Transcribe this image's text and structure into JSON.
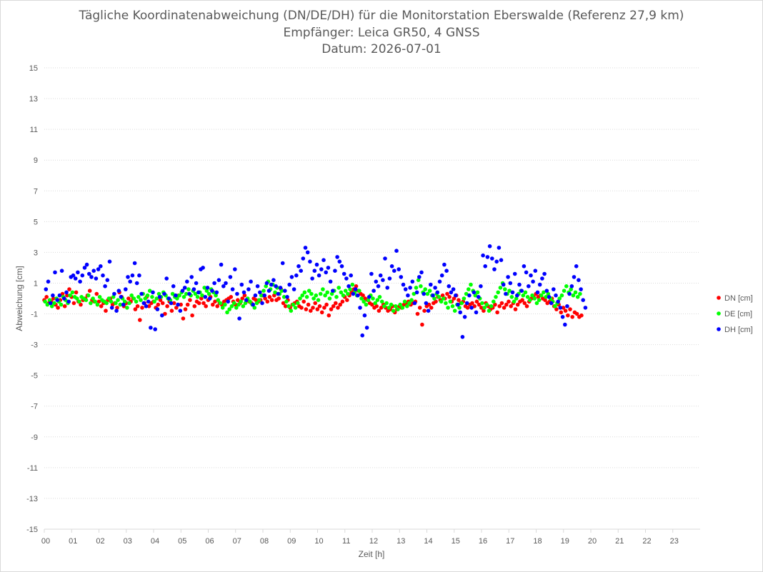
{
  "chart_data": {
    "type": "scatter",
    "title": [
      "Tägliche Koordinatenabweichung (DN/DE/DH) für die Monitorstation Eberswalde (Referenz 27,9 km)",
      "Empfänger: Leica GR50, 4 GNSS",
      "Datum: 2026-07-01"
    ],
    "xlabel": "Zeit [h]",
    "ylabel": "Abweichung [cm]",
    "xlim": [
      0,
      24
    ],
    "ylim": [
      -15,
      15
    ],
    "yticks": [
      15,
      13,
      11,
      9,
      7,
      5,
      3,
      1,
      -1,
      -3,
      -5,
      -7,
      -9,
      -11,
      -13,
      -15
    ],
    "xticks": [
      "00",
      "01",
      "02",
      "03",
      "04",
      "05",
      "06",
      "07",
      "08",
      "09",
      "10",
      "11",
      "12",
      "13",
      "14",
      "15",
      "16",
      "17",
      "18",
      "19",
      "20",
      "21",
      "22",
      "23"
    ],
    "grid": "horizontal dotted",
    "legend_position": "right",
    "series": [
      {
        "name": "DN [cm]",
        "color": "#ff0000",
        "x_start": 0,
        "x_step": 0.0833,
        "y": [
          -0.1,
          0.1,
          -0.3,
          -0.2,
          0.0,
          -0.4,
          -0.6,
          -0.1,
          0.3,
          -0.5,
          0.2,
          0.6,
          0.1,
          -0.3,
          0.4,
          -0.2,
          -0.4,
          -0.1,
          0.0,
          0.2,
          0.5,
          -0.1,
          -0.2,
          0.3,
          -0.2,
          -0.5,
          -0.3,
          -0.8,
          -0.1,
          0.0,
          -0.4,
          -0.3,
          -0.6,
          0.4,
          0.1,
          -0.5,
          -0.3,
          0.0,
          -0.2,
          0.0,
          -0.7,
          -0.5,
          -1.4,
          -0.6,
          -0.3,
          0.1,
          -0.5,
          -0.3,
          -0.2,
          -0.6,
          -0.4,
          -0.1,
          -0.3,
          -1.0,
          -0.5,
          -0.2,
          -0.8,
          -0.3,
          -0.6,
          0.2,
          -0.4,
          -1.3,
          -0.7,
          -0.4,
          -0.1,
          -1.1,
          -0.5,
          -0.2,
          -0.3,
          0.0,
          -0.3,
          -0.5,
          -0.1,
          0.1,
          -0.4,
          -0.2,
          -0.5,
          -0.3,
          -0.4,
          -0.2,
          -0.1,
          0.0,
          0.1,
          -0.2,
          -0.4,
          -0.1,
          -0.3,
          0.0,
          0.2,
          -0.1,
          -0.2,
          -0.3,
          0.0,
          -0.1,
          -0.2,
          -0.1,
          0.2,
          0.0,
          -0.2,
          0.1,
          -0.1,
          0.2,
          -0.1,
          0.0,
          0.6,
          -0.3,
          -0.5,
          -0.1,
          -0.6,
          -0.4,
          -0.3,
          -0.2,
          -0.5,
          -0.6,
          -0.2,
          -0.7,
          -0.4,
          -0.8,
          -0.6,
          -0.3,
          -0.7,
          -0.5,
          -0.9,
          -0.6,
          -0.4,
          -1.1,
          -0.7,
          -0.5,
          -0.3,
          -0.6,
          -0.4,
          -0.2,
          0.1,
          -0.1,
          0.2,
          0.4,
          0.6,
          0.8,
          0.5,
          0.3,
          0.2,
          0.0,
          -0.1,
          -0.3,
          -0.4,
          -0.6,
          -0.5,
          -0.8,
          -0.6,
          -0.4,
          -0.6,
          -0.8,
          -0.7,
          -0.5,
          -0.9,
          -0.7,
          -0.5,
          -0.6,
          -0.4,
          -0.3,
          -0.2,
          -0.4,
          -0.3,
          -0.2,
          -1.0,
          -0.6,
          -1.7,
          -0.8,
          -0.5,
          -0.4,
          -0.6,
          -0.3,
          -0.2,
          0.1,
          -0.1,
          0.2,
          0.0,
          0.3,
          0.1,
          -0.2,
          0.0,
          0.2,
          -0.1,
          -0.3,
          -0.2,
          -0.5,
          -0.6,
          -0.4,
          -0.3,
          -0.5,
          -0.2,
          -0.4,
          -0.6,
          -0.8,
          -0.3,
          -0.5,
          -0.7,
          -0.6,
          -0.4,
          -0.9,
          -0.5,
          -0.3,
          -0.6,
          -0.4,
          -0.2,
          -0.5,
          -0.3,
          -0.7,
          -0.4,
          -0.2,
          -0.1,
          -0.3,
          -0.5,
          -0.2,
          0.0,
          0.1,
          0.3,
          0.1,
          0.2,
          0.0,
          -0.1,
          -0.3,
          -0.2,
          0.0,
          -0.5,
          -0.7,
          -0.4,
          -0.9,
          -0.6,
          -0.8,
          -1.1,
          -0.7,
          -1.2,
          -0.9,
          -1.0,
          -1.2,
          -1.1
        ]
      },
      {
        "name": "DE [cm]",
        "color": "#00ff00",
        "x_start": 0.03,
        "x_step": 0.0833,
        "y": [
          -0.2,
          -0.4,
          -0.1,
          -0.5,
          -0.3,
          0.0,
          -0.2,
          -0.4,
          0.1,
          -0.1,
          -0.3,
          0.2,
          0.4,
          0.1,
          0.0,
          -0.2,
          0.1,
          0.0,
          -0.1,
          0.2,
          -0.3,
          0.0,
          -0.2,
          -0.4,
          0.1,
          -0.1,
          -0.2,
          -0.3,
          0.0,
          -0.2,
          0.1,
          -0.3,
          -0.1,
          -0.4,
          0.0,
          -0.2,
          -0.6,
          -0.3,
          0.2,
          0.0,
          -0.2,
          0.1,
          -0.1,
          0.3,
          0.0,
          0.2,
          0.5,
          0.1,
          -0.2,
          0.0,
          0.3,
          0.1,
          0.4,
          0.2,
          0.0,
          -0.1,
          0.3,
          0.1,
          0.0,
          0.2,
          0.4,
          0.1,
          0.3,
          0.6,
          0.2,
          0.5,
          0.3,
          0.1,
          0.4,
          0.2,
          0.7,
          0.5,
          0.3,
          0.6,
          0.4,
          0.2,
          -0.1,
          -0.3,
          -0.6,
          -0.4,
          -0.9,
          -0.7,
          -0.5,
          -0.3,
          -0.6,
          -0.4,
          -0.2,
          -0.5,
          -0.3,
          0.0,
          -0.2,
          -0.4,
          -0.6,
          -0.3,
          -0.1,
          0.2,
          0.5,
          0.8,
          1.1,
          0.6,
          0.9,
          0.4,
          0.7,
          0.3,
          0.5,
          0.1,
          -0.2,
          -0.5,
          -0.8,
          -0.4,
          -0.6,
          -0.3,
          0.0,
          0.2,
          0.4,
          0.1,
          0.5,
          0.3,
          0.0,
          0.2,
          -0.1,
          0.3,
          0.6,
          0.2,
          0.4,
          0.0,
          0.3,
          0.5,
          0.1,
          0.7,
          0.4,
          0.2,
          0.5,
          0.3,
          0.6,
          0.9,
          0.4,
          0.2,
          0.5,
          0.0,
          -0.2,
          -0.4,
          -0.1,
          0.2,
          0.0,
          -0.3,
          -0.1,
          0.1,
          -0.2,
          -0.5,
          -0.3,
          -0.6,
          -0.4,
          -0.8,
          -0.5,
          -0.7,
          -0.4,
          -0.6,
          -0.2,
          -0.5,
          -0.3,
          -0.1,
          0.3,
          0.7,
          1.2,
          0.8,
          0.4,
          0.6,
          0.3,
          0.5,
          0.2,
          0.0,
          0.3,
          0.1,
          -0.2,
          0.0,
          -0.3,
          -0.6,
          -0.2,
          -0.5,
          -0.8,
          -0.4,
          -0.6,
          -0.3,
          0.0,
          0.3,
          0.6,
          0.9,
          0.5,
          0.2,
          0.4,
          0.0,
          -0.3,
          -0.6,
          -0.4,
          -0.8,
          -0.5,
          -0.2,
          0.1,
          0.4,
          0.7,
          1.0,
          0.6,
          0.3,
          0.5,
          0.1,
          -0.2,
          0.0,
          0.3,
          0.5,
          0.2,
          0.4,
          0.1,
          -0.1,
          0.2,
          0.0,
          -0.3,
          -0.1,
          0.2,
          0.4,
          0.1,
          0.3,
          0.0,
          -0.2,
          -0.5,
          -0.3,
          0.0,
          0.2,
          0.5,
          0.8,
          0.4,
          0.6,
          0.2,
          0.4,
          0.1,
          0.3
        ]
      },
      {
        "name": "DH [cm]",
        "color": "#0000ff",
        "x_start": 0.06,
        "x_step": 0.0833,
        "y": [
          0.6,
          1.1,
          -0.3,
          0.2,
          1.7,
          -0.1,
          0.2,
          1.8,
          0.0,
          0.4,
          -0.2,
          1.4,
          1.5,
          1.3,
          1.7,
          1.1,
          1.5,
          2.0,
          2.2,
          1.6,
          1.4,
          1.8,
          1.3,
          1.9,
          2.1,
          1.5,
          0.8,
          1.2,
          2.4,
          -0.6,
          0.3,
          -0.8,
          0.5,
          0.1,
          -0.4,
          0.6,
          1.4,
          1.1,
          1.5,
          2.3,
          1.0,
          1.5,
          0.3,
          -0.3,
          -0.5,
          -0.2,
          -1.9,
          0.4,
          -2.0,
          -0.7,
          0.1,
          -1.1,
          0.3,
          1.3,
          0.0,
          -0.3,
          0.8,
          0.2,
          -0.4,
          -0.8,
          0.5,
          0.7,
          1.1,
          0.3,
          1.4,
          0.6,
          1.0,
          0.4,
          1.9,
          2.0,
          0.1,
          0.7,
          0.0,
          0.5,
          1.0,
          0.4,
          1.2,
          2.2,
          0.8,
          1.0,
          -0.2,
          1.4,
          0.6,
          1.9,
          0.3,
          -1.3,
          0.9,
          0.4,
          -0.1,
          0.6,
          1.1,
          -0.4,
          0.2,
          0.8,
          0.4,
          -0.3,
          0.2,
          1.0,
          0.5,
          0.9,
          1.2,
          0.8,
          0.3,
          0.7,
          2.3,
          0.5,
          0.1,
          0.9,
          1.4,
          0.6,
          1.5,
          2.1,
          1.8,
          2.6,
          3.3,
          3.0,
          2.4,
          1.3,
          1.8,
          2.2,
          1.5,
          1.9,
          2.5,
          1.7,
          2.0,
          1.1,
          0.5,
          1.8,
          2.7,
          2.4,
          2.1,
          1.6,
          1.3,
          0.8,
          1.5,
          0.3,
          0.6,
          0.2,
          -0.6,
          -2.4,
          -1.1,
          -1.9,
          0.1,
          1.6,
          0.5,
          1.1,
          0.8,
          1.5,
          1.2,
          2.6,
          0.7,
          1.3,
          2.1,
          1.8,
          3.1,
          1.9,
          1.4,
          0.9,
          0.6,
          0.2,
          0.7,
          1.1,
          -0.3,
          0.4,
          1.4,
          1.7,
          0.3,
          -0.3,
          -0.8,
          0.9,
          0.2,
          0.7,
          0.4,
          1.1,
          1.5,
          2.2,
          1.8,
          0.8,
          0.4,
          0.6,
          0.2,
          -0.4,
          -0.9,
          -2.5,
          -1.2,
          -0.3,
          0.2,
          -0.6,
          0.4,
          -0.9,
          0.1,
          0.8,
          2.8,
          2.1,
          2.7,
          3.4,
          2.6,
          1.9,
          2.4,
          3.3,
          2.5,
          0.9,
          0.3,
          1.4,
          1.0,
          0.4,
          1.6,
          0.2,
          0.9,
          0.5,
          2.1,
          1.7,
          0.8,
          1.5,
          1.1,
          1.8,
          0.4,
          0.9,
          1.3,
          1.6,
          0.5,
          0.1,
          -0.3,
          0.6,
          0.2,
          -0.2,
          -0.6,
          -1.2,
          -1.7,
          -0.5,
          0.3,
          0.8,
          1.4,
          2.1,
          1.2,
          0.6,
          -0.1,
          -0.6
        ]
      }
    ]
  }
}
